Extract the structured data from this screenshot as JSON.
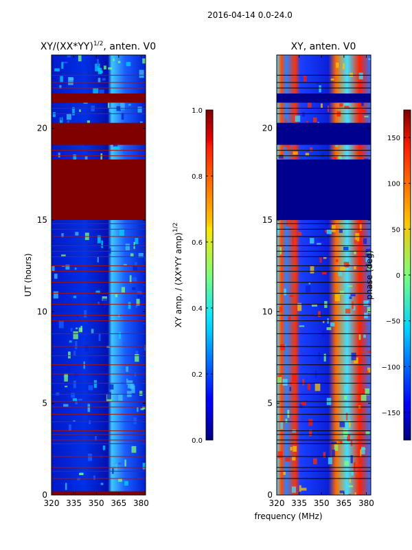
{
  "suptitle": "2016-04-14 0.0-24.0",
  "colors": {
    "saturated": "#800000",
    "flag_line": "#a01414",
    "band_dark": "#00008f"
  },
  "chart_data": [
    {
      "type": "heatmap",
      "title_main": "XY/(XX*YY)",
      "title_sup": "1/2",
      "title_tail": ", anten. V0",
      "ylabel": "UT (hours)",
      "xlim": [
        320,
        383
      ],
      "ylim": [
        0,
        24
      ],
      "x_ticks": [
        320,
        335,
        350,
        365,
        380
      ],
      "x_tick_labels": [
        "320",
        "335",
        "350",
        "365",
        "380"
      ],
      "y_ticks": [
        0,
        5,
        10,
        15,
        20
      ],
      "y_tick_labels": [
        "0",
        "5",
        "10",
        "15",
        "20"
      ],
      "saturated_bands": [
        [
          0,
          0.2
        ],
        [
          15.0,
          18.3
        ],
        [
          19.1,
          20.3
        ],
        [
          21.4,
          21.9
        ]
      ],
      "flag_lines": [
        0.9,
        1.3,
        1.5,
        2.1,
        2.8,
        3.0,
        3.3,
        3.5,
        4.0,
        4.4,
        4.8,
        5.1,
        5.5,
        6.1,
        6.6,
        7.1,
        7.6,
        8.1,
        8.8,
        9.5,
        9.8,
        10.4,
        11.0,
        11.6,
        12.2,
        12.5,
        13.0,
        13.3,
        13.6,
        14.1,
        14.5,
        14.8,
        18.5,
        18.8,
        20.8,
        21.1,
        22.2,
        22.5,
        22.9
      ],
      "colorbar": {
        "label_main": "XY amp. / (XX*YY amp)",
        "label_sup": "1/2",
        "range": [
          0.0,
          1.0
        ],
        "ticks": [
          0.0,
          0.2,
          0.4,
          0.6,
          0.8,
          1.0
        ],
        "tick_labels": [
          "0.0",
          "0.2",
          "0.4",
          "0.6",
          "0.8",
          "1.0"
        ]
      }
    },
    {
      "type": "heatmap",
      "title": "XY, anten. V0",
      "xlabel": "frequency (MHz)",
      "xlim": [
        320,
        383
      ],
      "ylim": [
        0,
        24
      ],
      "x_ticks": [
        320,
        335,
        350,
        365,
        380
      ],
      "x_tick_labels": [
        "320",
        "335",
        "350",
        "365",
        "380"
      ],
      "y_ticks": [
        0,
        5,
        10,
        15,
        20
      ],
      "y_tick_labels": [
        "0",
        "5",
        "10",
        "15",
        "20"
      ],
      "dark_bands": [
        [
          15.0,
          18.3
        ],
        [
          19.1,
          20.3
        ],
        [
          21.4,
          21.9
        ]
      ],
      "flag_lines": [
        0.9,
        1.3,
        1.5,
        2.1,
        2.8,
        3.0,
        3.3,
        3.5,
        4.0,
        4.4,
        4.8,
        5.1,
        5.5,
        6.1,
        6.6,
        7.1,
        7.6,
        8.1,
        8.8,
        9.5,
        9.8,
        10.4,
        11.0,
        11.6,
        12.2,
        12.5,
        13.0,
        13.3,
        13.6,
        14.1,
        14.5,
        14.8,
        18.5,
        18.8,
        20.8,
        21.1,
        22.2,
        22.5,
        22.9
      ],
      "colorbar": {
        "label": "phase (deg)",
        "range": [
          -180,
          180
        ],
        "ticks": [
          -150,
          -100,
          -50,
          0,
          50,
          100,
          150
        ],
        "tick_labels": [
          "−150",
          "−100",
          "−50",
          "0",
          "50",
          "100",
          "150"
        ]
      }
    }
  ]
}
